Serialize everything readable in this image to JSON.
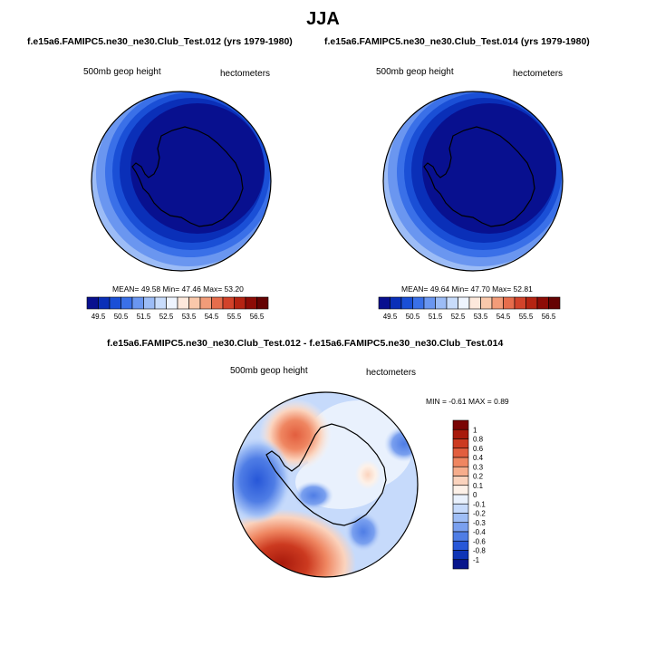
{
  "page": {
    "title": "JJA",
    "panel1_title": "f.e15a6.FAMIPC5.ne30_ne30.Club_Test.012 (yrs 1979-1980)",
    "panel2_title": "f.e15a6.FAMIPC5.ne30_ne30.Club_Test.014 (yrs 1979-1980)",
    "diff_title": "f.e15a6.FAMIPC5.ne30_ne30.Club_Test.012 - f.e15a6.FAMIPC5.ne30_ne30.Club_Test.014"
  },
  "chart_data": [
    {
      "type": "heatmap",
      "id": "panel-test-012",
      "variable": "500mb geop height",
      "units": "hectometers",
      "stats": {
        "mean": "49.58",
        "min": "47.46",
        "max": "53.20"
      },
      "stats_text": "MEAN=  49.58   Min=  47.46   Max=  53.20",
      "levels": [
        49.5,
        50,
        50.5,
        51,
        51.5,
        52,
        52.5,
        53,
        53.5,
        54,
        54.5,
        55,
        55.5,
        56,
        56.5
      ],
      "tick_labels": [
        "49.5",
        "50.5",
        "51.5",
        "52.5",
        "53.5",
        "54.5",
        "55.5",
        "56.5"
      ],
      "colors": [
        "#08108f",
        "#0a2fb8",
        "#1a4fd6",
        "#3a70e8",
        "#6a96f0",
        "#9cbcf6",
        "#c8dcfb",
        "#eef4fe",
        "#fde9dc",
        "#f9c8ab",
        "#f29c79",
        "#e66d4c",
        "#d2432a",
        "#b52412",
        "#8d0c06",
        "#650303"
      ]
    },
    {
      "type": "heatmap",
      "id": "panel-test-014",
      "variable": "500mb geop height",
      "units": "hectometers",
      "stats": {
        "mean": "49.64",
        "min": "47.70",
        "max": "52.81"
      },
      "stats_text": "MEAN=  49.64   Min=  47.70   Max=  52.81",
      "levels": [
        49.5,
        50,
        50.5,
        51,
        51.5,
        52,
        52.5,
        53,
        53.5,
        54,
        54.5,
        55,
        55.5,
        56,
        56.5
      ],
      "tick_labels": [
        "49.5",
        "50.5",
        "51.5",
        "52.5",
        "53.5",
        "54.5",
        "55.5",
        "56.5"
      ],
      "colors": [
        "#08108f",
        "#0a2fb8",
        "#1a4fd6",
        "#3a70e8",
        "#6a96f0",
        "#9cbcf6",
        "#c8dcfb",
        "#eef4fe",
        "#fde9dc",
        "#f9c8ab",
        "#f29c79",
        "#e66d4c",
        "#d2432a",
        "#b52412",
        "#8d0c06",
        "#650303"
      ]
    },
    {
      "type": "heatmap",
      "id": "panel-difference",
      "variable": "500mb geop height",
      "units": "hectometers",
      "stats": {
        "min": "-0.61",
        "max": "0.89"
      },
      "stats_text": "MIN =  -0.61  MAX =   0.89",
      "levels": [
        1,
        0.8,
        0.6,
        0.4,
        0.3,
        0.2,
        0.1,
        0,
        -0.1,
        -0.2,
        -0.3,
        -0.4,
        -0.6,
        -0.8,
        -1
      ],
      "tick_labels": [
        "1",
        "0.8",
        "0.6",
        "0.4",
        "0.3",
        "0.2",
        "0.1",
        "0",
        "-0.1",
        "-0.2",
        "-0.3",
        "-0.4",
        "-0.6",
        "-0.8",
        "-1"
      ],
      "colors": [
        "#7a0404",
        "#a81a0c",
        "#cc3a20",
        "#e25e3e",
        "#ef8661",
        "#f6ad8c",
        "#fbd3bd",
        "#fdf1e8",
        "#e9f1fd",
        "#c6dafb",
        "#9fbef6",
        "#7aa0ef",
        "#4f7de5",
        "#2757d8",
        "#0f35b6",
        "#08168c"
      ]
    }
  ]
}
